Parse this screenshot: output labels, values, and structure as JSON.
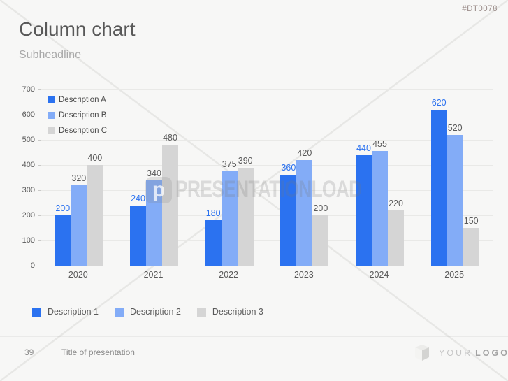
{
  "slide": {
    "code": "#DT0078"
  },
  "header": {
    "title": "Column chart",
    "subtitle": "Subheadline"
  },
  "watermark": {
    "text": "PRESENTATIONLOAD"
  },
  "chart_data": {
    "type": "bar",
    "categories": [
      "2020",
      "2021",
      "2022",
      "2023",
      "2024",
      "2025"
    ],
    "series": [
      {
        "name": "Description A",
        "color": "#2b72f0",
        "label_color": "#2b72f0",
        "values": [
          200,
          240,
          180,
          360,
          440,
          620
        ]
      },
      {
        "name": "Description B",
        "color": "#83acf7",
        "label_color": "#595959",
        "values": [
          320,
          340,
          375,
          420,
          455,
          520
        ]
      },
      {
        "name": "Description C",
        "color": "#d5d5d5",
        "label_color": "#595959",
        "values": [
          400,
          480,
          390,
          200,
          220,
          150
        ]
      }
    ],
    "ylim": [
      0,
      700
    ],
    "yticks": [
      0,
      100,
      200,
      300,
      400,
      500,
      600,
      700
    ],
    "grid": true,
    "legend_position": "top-left-inside",
    "xlabel": "",
    "ylabel": ""
  },
  "legend_bottom": {
    "items": [
      {
        "label": "Description 1",
        "color": "#2b72f0"
      },
      {
        "label": "Description 2",
        "color": "#83acf7"
      },
      {
        "label": "Description 3",
        "color": "#d5d5d5"
      }
    ]
  },
  "footer": {
    "page_number": "39",
    "title": "Title of presentation",
    "logo_word_light": "YOUR",
    "logo_word_bold": "LOGO"
  }
}
